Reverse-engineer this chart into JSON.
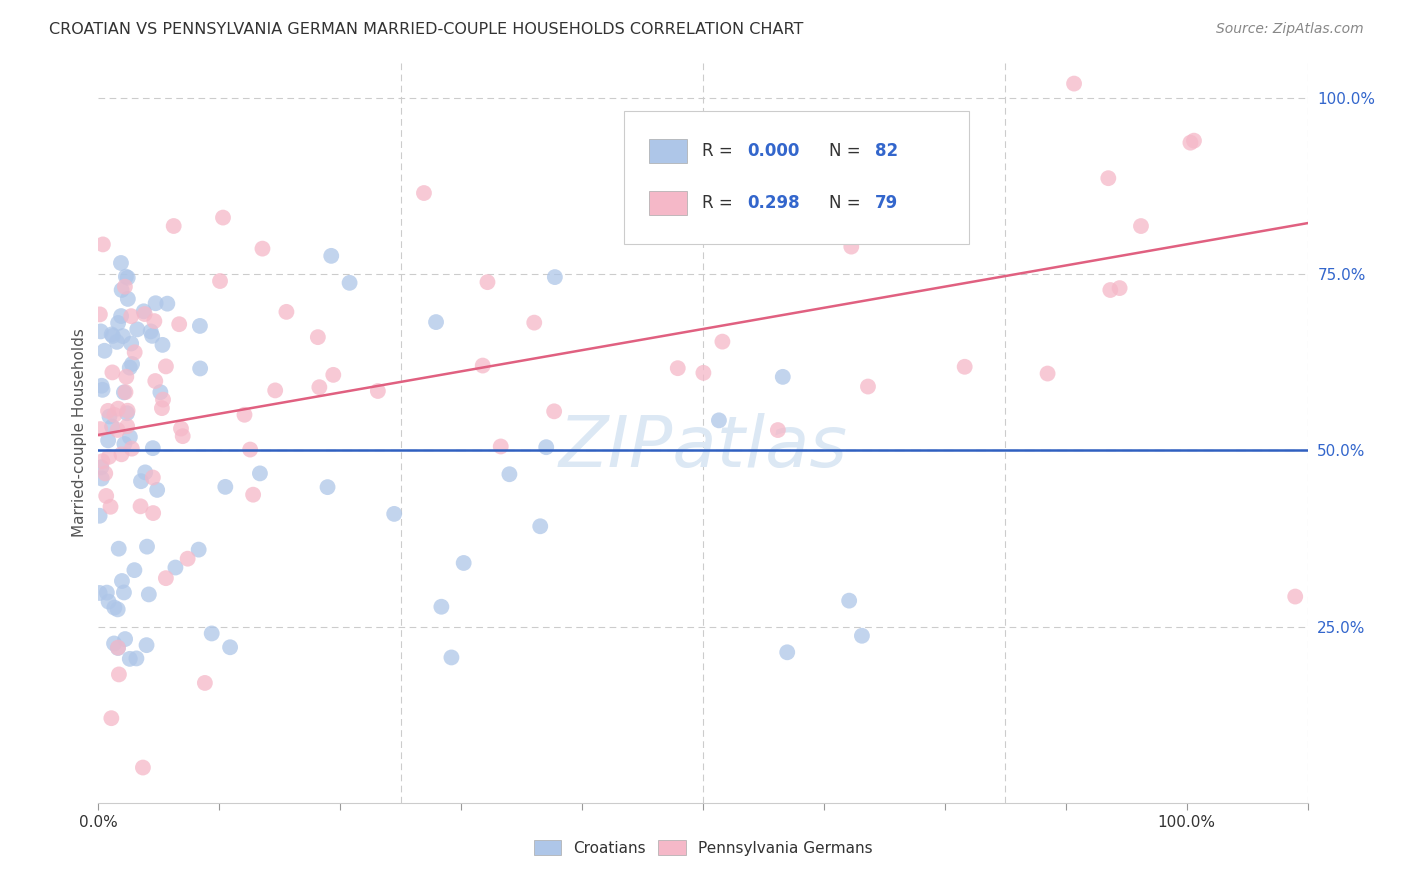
{
  "title": "CROATIAN VS PENNSYLVANIA GERMAN MARRIED-COUPLE HOUSEHOLDS CORRELATION CHART",
  "source": "Source: ZipAtlas.com",
  "ylabel": "Married-couple Households",
  "blue_color": "#aec6e8",
  "pink_color": "#f5b8c8",
  "blue_line_color": "#3060c0",
  "pink_line_color": "#e06080",
  "background_color": "#ffffff",
  "grid_color_gray": "#cccccc",
  "grid_color_blue": "#99aadd",
  "watermark_color": "#dce8f4",
  "title_color": "#333333",
  "source_color": "#888888",
  "right_tick_color": "#3366cc",
  "bottom_tick_color": "#333333",
  "legend_r_color": "#3366cc",
  "legend_text_color": "#333333"
}
